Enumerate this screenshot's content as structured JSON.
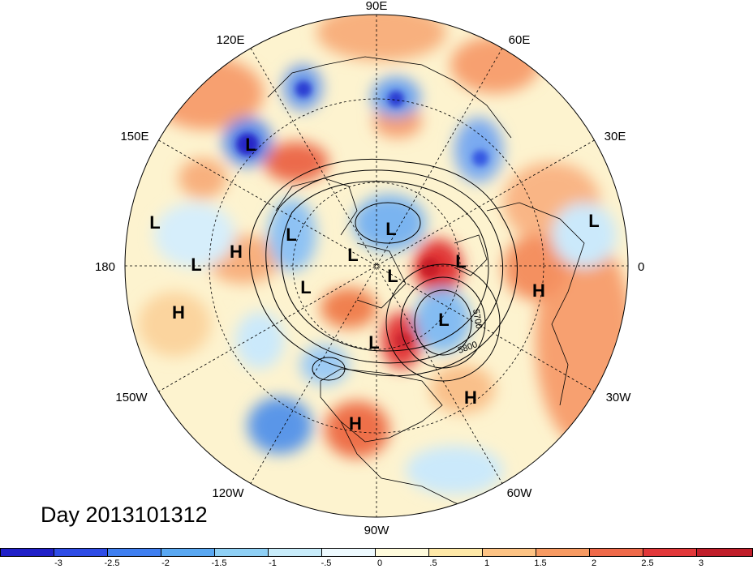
{
  "map": {
    "projection": "north-polar-stereographic",
    "longitude_labels": [
      "90E",
      "60E",
      "30E",
      "0",
      "30W",
      "60W",
      "90W",
      "120W",
      "150W",
      "180",
      "150E",
      "120E"
    ],
    "pressure_systems": [
      {
        "type": "L",
        "region": "eastern Siberia"
      },
      {
        "type": "L",
        "region": "North Pacific"
      },
      {
        "type": "L",
        "region": "central Pacific"
      },
      {
        "type": "H",
        "region": "Bering Strait"
      },
      {
        "type": "L",
        "region": "Arctic Siberia"
      },
      {
        "type": "L",
        "region": "Kara Sea"
      },
      {
        "type": "L",
        "region": "Arctic Ocean"
      },
      {
        "type": "L",
        "region": "north pole"
      },
      {
        "type": "L",
        "region": "Alaska"
      },
      {
        "type": "L",
        "region": "Hudson Bay"
      },
      {
        "type": "L",
        "region": "Scandinavia"
      },
      {
        "type": "L",
        "region": "North Atlantic"
      },
      {
        "type": "L",
        "region": "North Africa"
      },
      {
        "type": "H",
        "region": "Sahara"
      },
      {
        "type": "H",
        "region": "subtropical Atlantic"
      },
      {
        "type": "H",
        "region": "Mexico"
      },
      {
        "type": "H",
        "region": "eastern Pacific"
      }
    ],
    "contour_labels": [
      "5700",
      "5800"
    ]
  },
  "date_label": "Day 2013101312",
  "colorbar": {
    "colors": [
      "#2020c8",
      "#2e4ce6",
      "#3f7ff0",
      "#5aa8f2",
      "#8fd0f5",
      "#c8ecfa",
      "#eefaff",
      "#fffbdc",
      "#ffe9a8",
      "#fdc384",
      "#f79a62",
      "#ef6a4a",
      "#e2383a",
      "#c01e2a",
      "#a0101e"
    ],
    "tick_labels": [
      "-3",
      "-2.5",
      "-2",
      "-1.5",
      "-1",
      "-.5",
      "0",
      ".5",
      "1",
      "1.5",
      "2",
      "2.5",
      "3"
    ]
  }
}
